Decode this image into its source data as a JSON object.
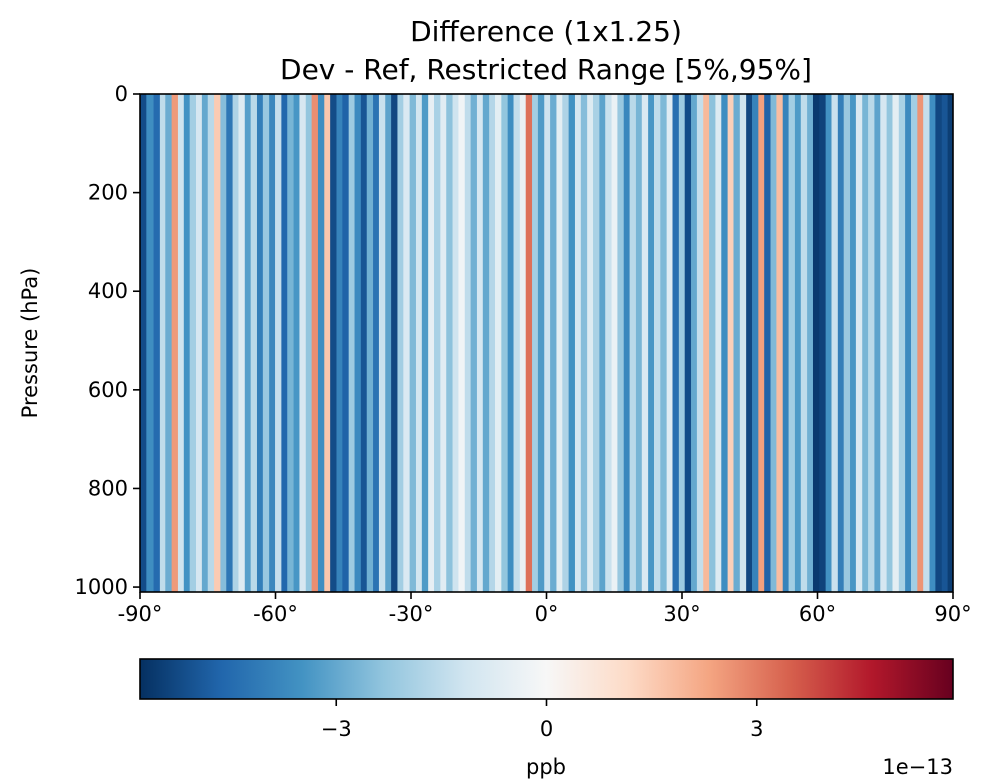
{
  "chart_data": {
    "type": "heatmap",
    "title_line1": "Difference (1x1.25)",
    "title_line2": "Dev - Ref, Restricted Range [5%,95%]",
    "ylabel": "Pressure (hPa)",
    "xlim": [
      -90,
      90
    ],
    "ylim": [
      1010,
      0
    ],
    "y_inverted": true,
    "x_ticks": [
      {
        "value": -90,
        "label": "-90°"
      },
      {
        "value": -60,
        "label": "-60°"
      },
      {
        "value": -30,
        "label": "-30°"
      },
      {
        "value": 0,
        "label": "0°"
      },
      {
        "value": 30,
        "label": "30°"
      },
      {
        "value": 60,
        "label": "60°"
      },
      {
        "value": 90,
        "label": "90°"
      }
    ],
    "y_ticks": [
      {
        "value": 0,
        "label": "0"
      },
      {
        "value": 200,
        "label": "200"
      },
      {
        "value": 400,
        "label": "400"
      },
      {
        "value": 600,
        "label": "600"
      },
      {
        "value": 800,
        "label": "800"
      },
      {
        "value": 1000,
        "label": "1000"
      }
    ],
    "colormap": "RdBu_r",
    "colorbar": {
      "label": "ppb",
      "offset_text": "1e−13",
      "range": [
        -5.8,
        5.8
      ],
      "ticks": [
        {
          "value": -3,
          "label": "−3"
        },
        {
          "value": 0,
          "label": "0"
        },
        {
          "value": 3,
          "label": "3"
        }
      ]
    },
    "value_units": "1e-13 ppb",
    "bands": [
      {
        "lat0": -90.0,
        "lat1": -88.6,
        "v": -5.2
      },
      {
        "lat0": -88.6,
        "lat1": -87.0,
        "v": -3.6
      },
      {
        "lat0": -87.0,
        "lat1": -85.6,
        "v": -4.5
      },
      {
        "lat0": -85.6,
        "lat1": -84.4,
        "v": -1.5
      },
      {
        "lat0": -84.4,
        "lat1": -83.0,
        "v": -2.9
      },
      {
        "lat0": -83.0,
        "lat1": -81.6,
        "v": 2.5
      },
      {
        "lat0": -81.6,
        "lat1": -80.3,
        "v": -1.2
      },
      {
        "lat0": -80.3,
        "lat1": -79.0,
        "v": -3.5
      },
      {
        "lat0": -79.0,
        "lat1": -77.6,
        "v": -2.0
      },
      {
        "lat0": -77.6,
        "lat1": -76.3,
        "v": -1.0
      },
      {
        "lat0": -76.3,
        "lat1": -75.0,
        "v": -3.0
      },
      {
        "lat0": -75.0,
        "lat1": -73.6,
        "v": -1.6
      },
      {
        "lat0": -73.6,
        "lat1": -72.2,
        "v": 1.5
      },
      {
        "lat0": -72.2,
        "lat1": -70.9,
        "v": -2.5
      },
      {
        "lat0": -70.9,
        "lat1": -69.5,
        "v": -4.2
      },
      {
        "lat0": -69.5,
        "lat1": -68.2,
        "v": -1.8
      },
      {
        "lat0": -68.2,
        "lat1": -66.8,
        "v": -0.8
      },
      {
        "lat0": -66.8,
        "lat1": -65.5,
        "v": -3.2
      },
      {
        "lat0": -65.5,
        "lat1": -64.1,
        "v": -1.6
      },
      {
        "lat0": -64.1,
        "lat1": -62.8,
        "v": -4.0
      },
      {
        "lat0": -62.8,
        "lat1": -61.4,
        "v": -2.2
      },
      {
        "lat0": -61.4,
        "lat1": -60.1,
        "v": -3.8
      },
      {
        "lat0": -60.1,
        "lat1": -58.7,
        "v": -1.4
      },
      {
        "lat0": -58.7,
        "lat1": -57.4,
        "v": -4.6
      },
      {
        "lat0": -57.4,
        "lat1": -56.0,
        "v": -2.7
      },
      {
        "lat0": -56.0,
        "lat1": -54.7,
        "v": -3.4
      },
      {
        "lat0": -54.7,
        "lat1": -53.3,
        "v": -1.0
      },
      {
        "lat0": -53.3,
        "lat1": -52.0,
        "v": -2.3
      },
      {
        "lat0": -52.0,
        "lat1": -50.6,
        "v": 2.7
      },
      {
        "lat0": -50.6,
        "lat1": -49.2,
        "v": -3.6
      },
      {
        "lat0": -49.2,
        "lat1": -47.9,
        "v": 1.6
      },
      {
        "lat0": -47.9,
        "lat1": -46.5,
        "v": -5.2
      },
      {
        "lat0": -46.5,
        "lat1": -45.2,
        "v": -3.9
      },
      {
        "lat0": -45.2,
        "lat1": -43.8,
        "v": -4.7
      },
      {
        "lat0": -43.8,
        "lat1": -42.5,
        "v": -2.1
      },
      {
        "lat0": -42.5,
        "lat1": -41.1,
        "v": -3.7
      },
      {
        "lat0": -41.1,
        "lat1": -39.8,
        "v": -5.0
      },
      {
        "lat0": -39.8,
        "lat1": -38.4,
        "v": -2.8
      },
      {
        "lat0": -38.4,
        "lat1": -37.1,
        "v": -4.3
      },
      {
        "lat0": -37.1,
        "lat1": -35.7,
        "v": -1.3
      },
      {
        "lat0": -35.7,
        "lat1": -34.4,
        "v": -3.1
      },
      {
        "lat0": -34.4,
        "lat1": -33.0,
        "v": -5.3
      },
      {
        "lat0": -33.0,
        "lat1": -31.7,
        "v": -2.0
      },
      {
        "lat0": -31.7,
        "lat1": -30.3,
        "v": -0.9
      },
      {
        "lat0": -30.3,
        "lat1": -28.9,
        "v": -2.6
      },
      {
        "lat0": -28.9,
        "lat1": -27.6,
        "v": -1.1
      },
      {
        "lat0": -27.6,
        "lat1": -26.2,
        "v": -3.3
      },
      {
        "lat0": -26.2,
        "lat1": -24.9,
        "v": -0.5
      },
      {
        "lat0": -24.9,
        "lat1": -23.5,
        "v": -1.9
      },
      {
        "lat0": -23.5,
        "lat1": -22.2,
        "v": -0.7
      },
      {
        "lat0": -22.2,
        "lat1": -20.8,
        "v": -2.4
      },
      {
        "lat0": -20.8,
        "lat1": -19.5,
        "v": -1.2
      },
      {
        "lat0": -19.5,
        "lat1": -18.1,
        "v": -0.2
      },
      {
        "lat0": -18.1,
        "lat1": -16.8,
        "v": -1.5
      },
      {
        "lat0": -16.8,
        "lat1": -15.4,
        "v": -2.8
      },
      {
        "lat0": -15.4,
        "lat1": -14.1,
        "v": -1.0
      },
      {
        "lat0": -14.1,
        "lat1": -12.7,
        "v": -3.0
      },
      {
        "lat0": -12.7,
        "lat1": -11.4,
        "v": -1.7
      },
      {
        "lat0": -11.4,
        "lat1": -10.0,
        "v": -0.6
      },
      {
        "lat0": -10.0,
        "lat1": -8.6,
        "v": -2.3
      },
      {
        "lat0": -8.6,
        "lat1": -7.3,
        "v": -3.6
      },
      {
        "lat0": -7.3,
        "lat1": -5.9,
        "v": -1.4
      },
      {
        "lat0": -5.9,
        "lat1": -4.6,
        "v": -0.4
      },
      {
        "lat0": -4.6,
        "lat1": -3.2,
        "v": 3.2
      },
      {
        "lat0": -3.2,
        "lat1": -1.9,
        "v": -2.0
      },
      {
        "lat0": -1.9,
        "lat1": -0.5,
        "v": -3.3
      },
      {
        "lat0": -0.5,
        "lat1": 0.8,
        "v": -1.2
      },
      {
        "lat0": 0.8,
        "lat1": 2.2,
        "v": -2.9
      },
      {
        "lat0": 2.2,
        "lat1": 3.5,
        "v": -0.6
      },
      {
        "lat0": 3.5,
        "lat1": 4.9,
        "v": -1.8
      },
      {
        "lat0": 4.9,
        "lat1": 6.3,
        "v": -3.5
      },
      {
        "lat0": 6.3,
        "lat1": 7.6,
        "v": -1.0
      },
      {
        "lat0": 7.6,
        "lat1": 9.0,
        "v": -2.5
      },
      {
        "lat0": 9.0,
        "lat1": 10.3,
        "v": -0.8
      },
      {
        "lat0": 10.3,
        "lat1": 11.7,
        "v": -1.9
      },
      {
        "lat0": 11.7,
        "lat1": 13.0,
        "v": -3.1
      },
      {
        "lat0": 13.0,
        "lat1": 14.4,
        "v": -1.3
      },
      {
        "lat0": 14.4,
        "lat1": 15.7,
        "v": -0.4
      },
      {
        "lat0": 15.7,
        "lat1": 17.1,
        "v": -2.2
      },
      {
        "lat0": 17.1,
        "lat1": 18.4,
        "v": -3.8
      },
      {
        "lat0": 18.4,
        "lat1": 19.8,
        "v": -1.6
      },
      {
        "lat0": 19.8,
        "lat1": 21.1,
        "v": -2.7
      },
      {
        "lat0": 21.1,
        "lat1": 22.5,
        "v": -0.9
      },
      {
        "lat0": 22.5,
        "lat1": 23.8,
        "v": -3.4
      },
      {
        "lat0": 23.8,
        "lat1": 25.2,
        "v": -1.5
      },
      {
        "lat0": 25.2,
        "lat1": 26.6,
        "v": -2.6
      },
      {
        "lat0": 26.6,
        "lat1": 27.9,
        "v": -0.7
      },
      {
        "lat0": 27.9,
        "lat1": 29.3,
        "v": -4.4
      },
      {
        "lat0": 29.3,
        "lat1": 30.6,
        "v": -2.1
      },
      {
        "lat0": 30.6,
        "lat1": 32.0,
        "v": -5.2
      },
      {
        "lat0": 32.0,
        "lat1": 33.3,
        "v": -3.0
      },
      {
        "lat0": 33.3,
        "lat1": 34.7,
        "v": -1.4
      },
      {
        "lat0": 34.7,
        "lat1": 36.0,
        "v": 1.9
      },
      {
        "lat0": 36.0,
        "lat1": 37.4,
        "v": -2.4
      },
      {
        "lat0": 37.4,
        "lat1": 38.7,
        "v": -0.8
      },
      {
        "lat0": 38.7,
        "lat1": 40.1,
        "v": -3.6
      },
      {
        "lat0": 40.1,
        "lat1": 41.4,
        "v": 1.4
      },
      {
        "lat0": 41.4,
        "lat1": 42.8,
        "v": -2.9
      },
      {
        "lat0": 42.8,
        "lat1": 44.2,
        "v": -1.2
      },
      {
        "lat0": 44.2,
        "lat1": 45.5,
        "v": -5.3
      },
      {
        "lat0": 45.5,
        "lat1": 46.9,
        "v": -3.9
      },
      {
        "lat0": 46.9,
        "lat1": 48.2,
        "v": 2.4
      },
      {
        "lat0": 48.2,
        "lat1": 49.6,
        "v": -4.7
      },
      {
        "lat0": 49.6,
        "lat1": 50.9,
        "v": -2.6
      },
      {
        "lat0": 50.9,
        "lat1": 52.3,
        "v": 1.8
      },
      {
        "lat0": 52.3,
        "lat1": 53.6,
        "v": -3.9
      },
      {
        "lat0": 53.6,
        "lat1": 55.0,
        "v": -2.0
      },
      {
        "lat0": 55.0,
        "lat1": 56.3,
        "v": -3.3
      },
      {
        "lat0": 56.3,
        "lat1": 57.7,
        "v": -1.5
      },
      {
        "lat0": 57.7,
        "lat1": 59.0,
        "v": -2.8
      },
      {
        "lat0": 59.0,
        "lat1": 60.4,
        "v": -5.6
      },
      {
        "lat0": 60.4,
        "lat1": 61.8,
        "v": -5.4
      },
      {
        "lat0": 61.8,
        "lat1": 63.1,
        "v": -3.5
      },
      {
        "lat0": 63.1,
        "lat1": 64.5,
        "v": -1.3
      },
      {
        "lat0": 64.5,
        "lat1": 65.8,
        "v": -4.0
      },
      {
        "lat0": 65.8,
        "lat1": 67.2,
        "v": -2.2
      },
      {
        "lat0": 67.2,
        "lat1": 68.5,
        "v": -3.4
      },
      {
        "lat0": 68.5,
        "lat1": 69.9,
        "v": -0.9
      },
      {
        "lat0": 69.9,
        "lat1": 71.2,
        "v": -2.7
      },
      {
        "lat0": 71.2,
        "lat1": 72.6,
        "v": -1.6
      },
      {
        "lat0": 72.6,
        "lat1": 73.9,
        "v": -3.1
      },
      {
        "lat0": 73.9,
        "lat1": 75.3,
        "v": -1.0
      },
      {
        "lat0": 75.3,
        "lat1": 76.6,
        "v": -2.3
      },
      {
        "lat0": 76.6,
        "lat1": 78.0,
        "v": -0.6
      },
      {
        "lat0": 78.0,
        "lat1": 79.4,
        "v": -1.9
      },
      {
        "lat0": 79.4,
        "lat1": 80.7,
        "v": -3.7
      },
      {
        "lat0": 80.7,
        "lat1": 82.1,
        "v": -2.0
      },
      {
        "lat0": 82.1,
        "lat1": 83.4,
        "v": 2.6
      },
      {
        "lat0": 83.4,
        "lat1": 84.8,
        "v": -1.4
      },
      {
        "lat0": 84.8,
        "lat1": 86.1,
        "v": -3.6
      },
      {
        "lat0": 86.1,
        "lat1": 87.5,
        "v": -5.3
      },
      {
        "lat0": 87.5,
        "lat1": 88.8,
        "v": -5.0
      },
      {
        "lat0": 88.8,
        "lat1": 90.0,
        "v": -5.5
      }
    ]
  }
}
